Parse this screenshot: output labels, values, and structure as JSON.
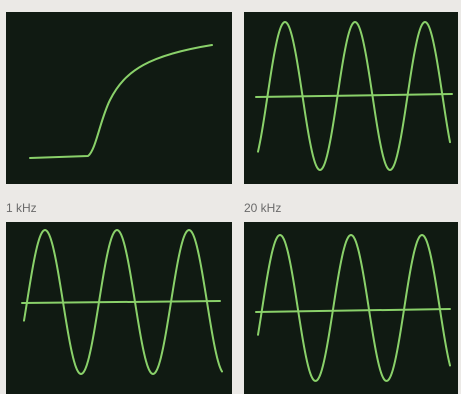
{
  "labels": [
    "1 kHz",
    "20 kHz"
  ]
}
